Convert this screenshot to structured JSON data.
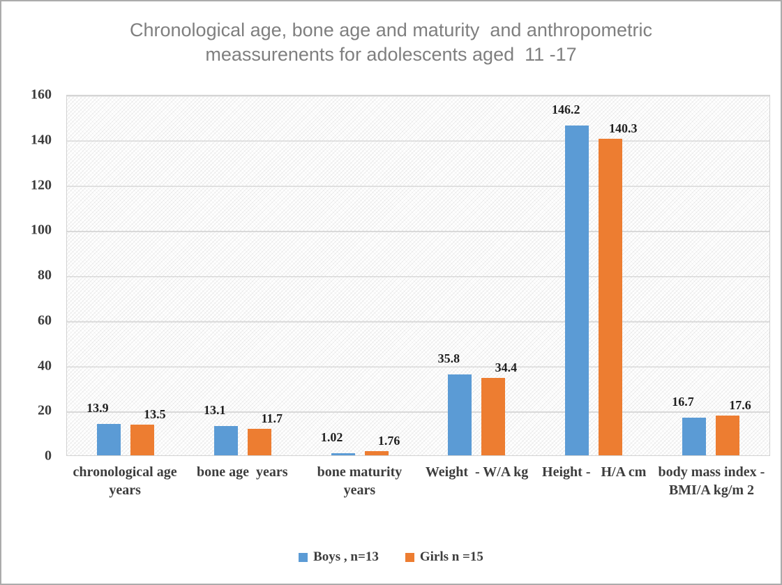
{
  "title": "Chronological age, bone age and maturity  and anthropometric\nmeassurenents for adolescents aged  11 -17",
  "title_color": "#7f7f7f",
  "chart_data": {
    "type": "bar",
    "title": "Chronological age, bone age and maturity  and anthropometric meassurenents for adolescents aged  11 -17",
    "xlabel": "",
    "ylabel": "",
    "categories": [
      "chronological age\nyears",
      "bone age  years",
      "bone maturity\nyears",
      "Weight  - W/A kg",
      "Height -   H/A cm",
      "body mass index -\nBMI/A kg/m 2"
    ],
    "series": [
      {
        "name": "Boys , n=13",
        "color": "#5B9BD5",
        "values": [
          13.9,
          13.1,
          1.02,
          35.8,
          146.2,
          16.7
        ],
        "labels": [
          "13.9",
          "13.1",
          "1.02",
          "35.8",
          "146.2",
          "16.7"
        ]
      },
      {
        "name": "Girls n =15",
        "color": "#ED7D31",
        "values": [
          13.5,
          11.7,
          1.76,
          34.4,
          140.3,
          17.6
        ],
        "labels": [
          "13.5",
          "11.7",
          "1.76",
          "34.4",
          "140.3",
          "17.6"
        ]
      }
    ],
    "ylim": [
      0,
      160
    ],
    "ytick_step": 20,
    "yticks": [
      0,
      20,
      40,
      60,
      80,
      100,
      120,
      140,
      160
    ],
    "grid": true,
    "plot_fill": "hatched",
    "gridline_color": "#d9d9d9",
    "legend_position": "bottom"
  }
}
